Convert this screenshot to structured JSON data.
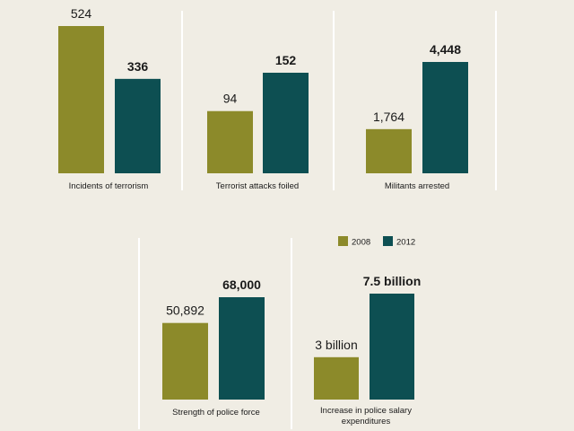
{
  "colors": {
    "background": "#f0ede4",
    "series_2008": "#8c8a2a",
    "series_2012": "#0d4f52",
    "divider": "#ffffff",
    "text": "#1a1a1a"
  },
  "legend": {
    "items": [
      {
        "label": "2008",
        "color": "#8c8a2a"
      },
      {
        "label": "2012",
        "color": "#0d4f52"
      }
    ]
  },
  "chart_data": [
    {
      "type": "bar",
      "categories": [
        "2008",
        "2012"
      ],
      "values": [
        524,
        336
      ],
      "value_labels": [
        "524",
        "336"
      ],
      "title": "Incidents of terrorism"
    },
    {
      "type": "bar",
      "categories": [
        "2008",
        "2012"
      ],
      "values": [
        94,
        152
      ],
      "value_labels": [
        "94",
        "152"
      ],
      "title": "Terrorist attacks foiled"
    },
    {
      "type": "bar",
      "categories": [
        "2008",
        "2012"
      ],
      "values": [
        1764,
        4448
      ],
      "value_labels": [
        "1,764",
        "4,448"
      ],
      "title": "Militants arrested"
    },
    {
      "type": "bar",
      "categories": [
        "2008",
        "2012"
      ],
      "values": [
        50892,
        68000
      ],
      "value_labels": [
        "50,892",
        "68,000"
      ],
      "title": "Strength of police force"
    },
    {
      "type": "bar",
      "categories": [
        "2008",
        "2012"
      ],
      "values": [
        3,
        7.5
      ],
      "value_labels": [
        "3 billion",
        "7.5 billion"
      ],
      "title_lines": [
        "Increase in police salary",
        "expenditures"
      ]
    }
  ]
}
